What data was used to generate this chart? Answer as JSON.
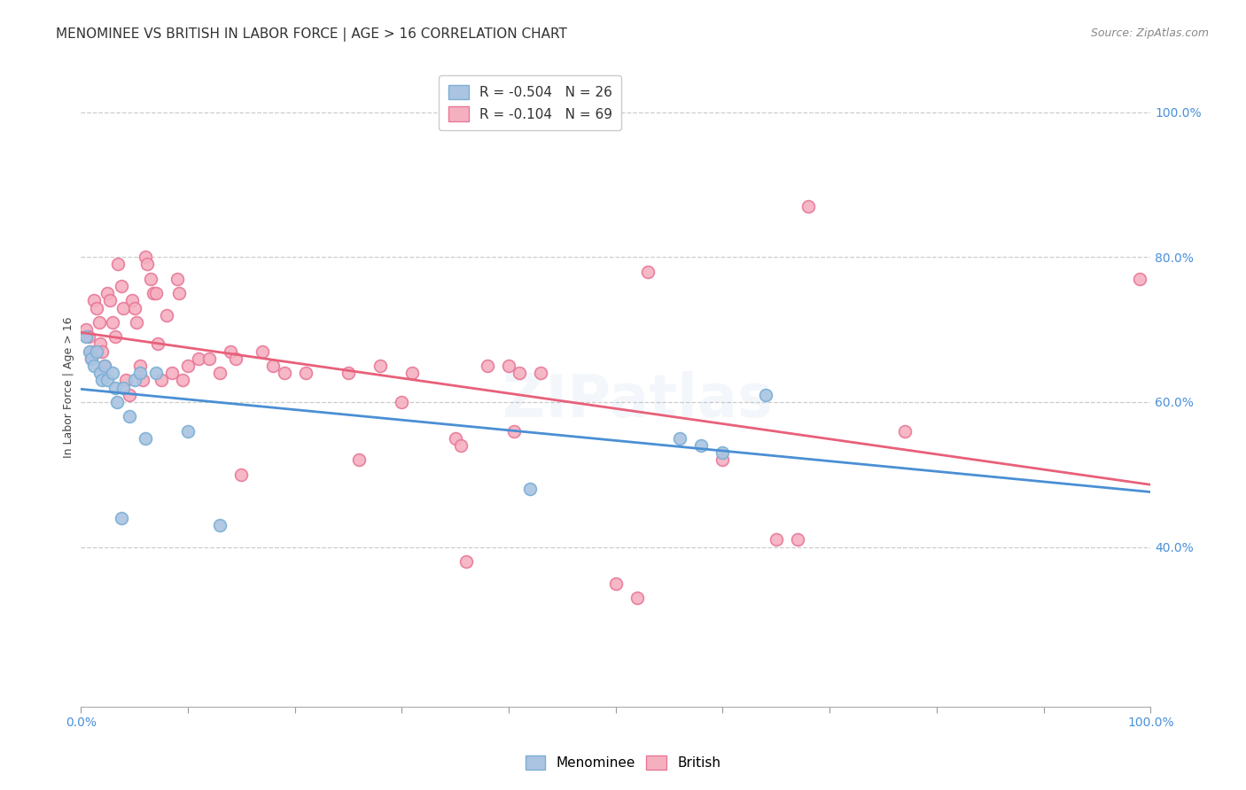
{
  "title": "MENOMINEE VS BRITISH IN LABOR FORCE | AGE > 16 CORRELATION CHART",
  "source": "Source: ZipAtlas.com",
  "ylabel": "In Labor Force | Age > 16",
  "xlim": [
    0,
    1
  ],
  "ylim": [
    0.18,
    1.06
  ],
  "background_color": "#ffffff",
  "grid_color": "#cccccc",
  "watermark": "ZIPatlas",
  "menominee_color": "#aac4e2",
  "british_color": "#f5b0c0",
  "menominee_edge": "#7aafd4",
  "british_edge": "#e87898",
  "regression_menominee": "#4a8fd4",
  "regression_british": "#e8607a",
  "legend_R_menominee": "R = -0.504",
  "legend_N_menominee": "N = 26",
  "legend_R_british": "R = -0.104",
  "legend_N_british": "N = 69",
  "yticks_right": [
    1.0,
    0.8,
    0.6,
    0.4
  ],
  "menominee_x": [
    0.005,
    0.008,
    0.01,
    0.012,
    0.015,
    0.018,
    0.02,
    0.022,
    0.025,
    0.03,
    0.032,
    0.034,
    0.038,
    0.04,
    0.045,
    0.05,
    0.055,
    0.06,
    0.07,
    0.1,
    0.13,
    0.42,
    0.56,
    0.58,
    0.6,
    0.64
  ],
  "menominee_y": [
    0.69,
    0.67,
    0.66,
    0.65,
    0.67,
    0.64,
    0.63,
    0.65,
    0.63,
    0.64,
    0.62,
    0.6,
    0.44,
    0.62,
    0.58,
    0.63,
    0.64,
    0.55,
    0.64,
    0.56,
    0.43,
    0.48,
    0.55,
    0.54,
    0.53,
    0.61
  ],
  "british_x": [
    0.005,
    0.007,
    0.009,
    0.01,
    0.012,
    0.015,
    0.017,
    0.018,
    0.02,
    0.022,
    0.025,
    0.027,
    0.03,
    0.032,
    0.035,
    0.038,
    0.04,
    0.042,
    0.045,
    0.048,
    0.05,
    0.052,
    0.055,
    0.058,
    0.06,
    0.062,
    0.065,
    0.068,
    0.07,
    0.072,
    0.075,
    0.08,
    0.085,
    0.09,
    0.092,
    0.095,
    0.1,
    0.11,
    0.12,
    0.13,
    0.14,
    0.145,
    0.15,
    0.17,
    0.18,
    0.19,
    0.21,
    0.25,
    0.26,
    0.28,
    0.3,
    0.31,
    0.35,
    0.355,
    0.36,
    0.38,
    0.4,
    0.405,
    0.41,
    0.43,
    0.5,
    0.52,
    0.53,
    0.6,
    0.65,
    0.67,
    0.68,
    0.77,
    0.99
  ],
  "british_y": [
    0.7,
    0.69,
    0.67,
    0.66,
    0.74,
    0.73,
    0.71,
    0.68,
    0.67,
    0.65,
    0.75,
    0.74,
    0.71,
    0.69,
    0.79,
    0.76,
    0.73,
    0.63,
    0.61,
    0.74,
    0.73,
    0.71,
    0.65,
    0.63,
    0.8,
    0.79,
    0.77,
    0.75,
    0.75,
    0.68,
    0.63,
    0.72,
    0.64,
    0.77,
    0.75,
    0.63,
    0.65,
    0.66,
    0.66,
    0.64,
    0.67,
    0.66,
    0.5,
    0.67,
    0.65,
    0.64,
    0.64,
    0.64,
    0.52,
    0.65,
    0.6,
    0.64,
    0.55,
    0.54,
    0.38,
    0.65,
    0.65,
    0.56,
    0.64,
    0.64,
    0.35,
    0.33,
    0.78,
    0.52,
    0.41,
    0.41,
    0.87,
    0.56,
    0.77
  ],
  "marker_size": 100,
  "title_fontsize": 11,
  "source_fontsize": 9,
  "axis_label_fontsize": 9,
  "tick_fontsize": 10,
  "legend_fontsize": 11,
  "watermark_fontsize": 48,
  "watermark_alpha": 0.1,
  "watermark_color": "#90b8d8"
}
